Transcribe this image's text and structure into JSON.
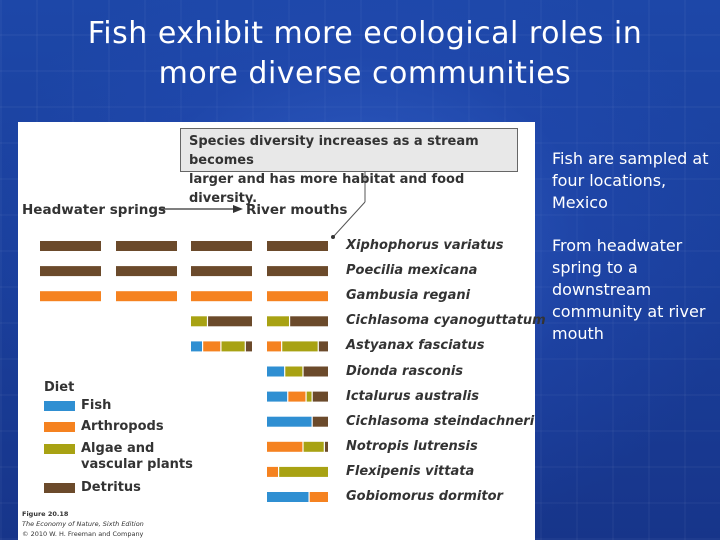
{
  "slide": {
    "title_line1": "Fish exhibit more ecological roles in",
    "title_line2": "more diverse communities",
    "bullet1": "Fish are sampled at four locations, Mexico",
    "bullet2": "From headwater spring to a downstream community at river mouth"
  },
  "figure": {
    "callout_line1": "Species diversity increases as a stream becomes",
    "callout_line2": "larger and has more habitat and food diversity.",
    "headwater_label": "Headwater springs",
    "river_label": "River mouths",
    "diet_title": "Diet",
    "legend": [
      {
        "key": "fish",
        "label": "Fish",
        "color": "#2f8fd2"
      },
      {
        "key": "arthropods",
        "label": "Arthropods",
        "color": "#f58220"
      },
      {
        "key": "algae",
        "label": "Algae and\nvascular plants",
        "color": "#a8a213"
      },
      {
        "key": "detritus",
        "label": "Detritus",
        "color": "#6b4a2b"
      }
    ],
    "credit_line1": "Figure 20.18",
    "credit_line2": "The Economy of Nature, Sixth Edition",
    "credit_line3": "© 2010 W. H. Freeman and Company"
  },
  "chart_data": {
    "type": "table",
    "columns": [
      "Headwater springs",
      "",
      "",
      "River mouths"
    ],
    "rows": [
      {
        "species": "Xiphophorus variatus",
        "sites": [
          [
            [
              "detritus",
              1
            ]
          ],
          [
            [
              "detritus",
              1
            ]
          ],
          [
            [
              "detritus",
              1
            ]
          ],
          [
            [
              "detritus",
              1
            ]
          ]
        ]
      },
      {
        "species": "Poecilia mexicana",
        "sites": [
          [
            [
              "detritus",
              1
            ]
          ],
          [
            [
              "detritus",
              1
            ]
          ],
          [
            [
              "detritus",
              1
            ]
          ],
          [
            [
              "detritus",
              1
            ]
          ]
        ]
      },
      {
        "species": "Gambusia regani",
        "sites": [
          [
            [
              "arthropods",
              1
            ]
          ],
          [
            [
              "arthropods",
              1
            ]
          ],
          [
            [
              "arthropods",
              1
            ]
          ],
          [
            [
              "arthropods",
              1
            ]
          ]
        ]
      },
      {
        "species": "Cichlasoma cyanoguttatum",
        "sites": [
          null,
          null,
          [
            [
              "algae",
              0.28
            ],
            [
              "detritus",
              0.72
            ]
          ],
          [
            [
              "algae",
              0.38
            ],
            [
              "detritus",
              0.62
            ]
          ]
        ]
      },
      {
        "species": "Astyanax fasciatus",
        "sites": [
          null,
          null,
          [
            [
              "fish",
              0.2
            ],
            [
              "arthropods",
              0.3
            ],
            [
              "algae",
              0.4
            ],
            [
              "detritus",
              0.1
            ]
          ],
          [
            [
              "arthropods",
              0.25
            ],
            [
              "algae",
              0.6
            ],
            [
              "detritus",
              0.15
            ]
          ]
        ]
      },
      {
        "species": "Dionda rasconis",
        "sites": [
          null,
          null,
          null,
          [
            [
              "fish",
              0.3
            ],
            [
              "algae",
              0.3
            ],
            [
              "detritus",
              0.4
            ]
          ]
        ]
      },
      {
        "species": "Ictalurus australis",
        "sites": [
          null,
          null,
          null,
          [
            [
              "fish",
              0.35
            ],
            [
              "arthropods",
              0.3
            ],
            [
              "algae",
              0.1
            ],
            [
              "detritus",
              0.25
            ]
          ]
        ]
      },
      {
        "species": "Cichlasoma steindachneri",
        "sites": [
          null,
          null,
          null,
          [
            [
              "fish",
              0.75
            ],
            [
              "detritus",
              0.25
            ]
          ]
        ]
      },
      {
        "species": "Notropis lutrensis",
        "sites": [
          null,
          null,
          null,
          [
            [
              "arthropods",
              0.6
            ],
            [
              "algae",
              0.35
            ],
            [
              "detritus",
              0.05
            ]
          ]
        ]
      },
      {
        "species": "Flexipenis vittata",
        "sites": [
          null,
          null,
          null,
          [
            [
              "arthropods",
              0.2
            ],
            [
              "algae",
              0.8
            ]
          ]
        ]
      },
      {
        "species": "Gobiomorus dormitor",
        "sites": [
          null,
          null,
          null,
          [
            [
              "fish",
              0.7
            ],
            [
              "arthropods",
              0.3
            ]
          ]
        ]
      }
    ]
  }
}
